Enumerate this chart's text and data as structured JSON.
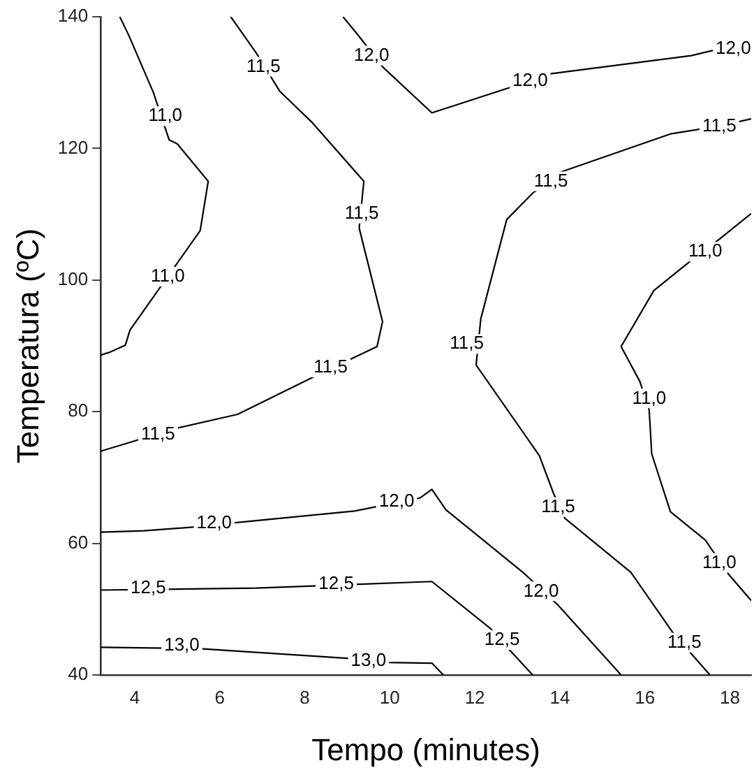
{
  "chart_data": {
    "type": "line",
    "xlabel": "Tempo (minutes)",
    "ylabel": "Temperatura (ºC)",
    "xlim": [
      3.2,
      18.5
    ],
    "ylim": [
      40,
      140
    ],
    "xticks": [
      4,
      6,
      8,
      10,
      12,
      14,
      16,
      18
    ],
    "yticks": [
      40,
      60,
      80,
      100,
      120,
      140
    ],
    "grid": false,
    "legend": false,
    "marker": "none",
    "line_style": "solid",
    "series": [
      {
        "color": "#000000",
        "x": [
          3.65,
          3.86,
          4.44,
          4.81,
          5.0,
          5.73,
          5.54,
          3.89,
          3.78,
          3.4,
          3.2
        ],
        "values": [
          140,
          137.2,
          128.5,
          121.3,
          120.7,
          115,
          107.5,
          92.4,
          90.1,
          89.0,
          88.6
        ]
      },
      {
        "color": "#000000",
        "x": [
          6.26,
          6.86,
          7.41,
          8.18,
          9.39,
          9.28,
          9.83,
          9.7,
          8.18,
          6.42,
          4.99,
          3.2
        ],
        "values": [
          140,
          134.5,
          128.7,
          123.9,
          115,
          107.9,
          93.7,
          89.9,
          85.2,
          79.6,
          77.5,
          74.0
        ]
      },
      {
        "color": "#000000",
        "x": [
          8.9,
          9.28,
          9.83,
          10.99,
          12.8,
          13.74,
          17.09,
          18.5
        ],
        "values": [
          140,
          137,
          132.4,
          125.4,
          129.2,
          131.3,
          134.1,
          136.3
        ]
      },
      {
        "color": "#000000",
        "x": [
          18.5,
          17.75,
          16.6,
          14.02,
          13.36,
          12.75,
          12.14,
          12.03,
          13.52,
          13.85,
          14.12,
          15.67,
          16.66,
          17.53
        ],
        "values": [
          124.5,
          123.4,
          122.2,
          116.4,
          113.2,
          109.2,
          94.1,
          87.1,
          73.3,
          67.6,
          63.8,
          55.6,
          46.4,
          40
        ]
      },
      {
        "color": "#000000",
        "x": [
          18.5,
          17.75,
          17.09,
          16.21,
          15.44,
          15.88,
          16.1,
          16.16,
          16.6,
          17.42,
          17.98,
          18.5
        ],
        "values": [
          110.1,
          106.2,
          103,
          98.4,
          89.9,
          84.6,
          80.3,
          73.6,
          64.8,
          60.5,
          55.2,
          51.3
        ]
      },
      {
        "color": "#000000",
        "x": [
          3.2,
          4.22,
          5.43,
          6.31,
          9.17,
          10.71,
          10.99,
          11.32,
          13.13,
          13.96,
          15.44
        ],
        "values": [
          61.7,
          61.9,
          62.5,
          63.1,
          64.9,
          66.9,
          68.2,
          65.1,
          55.6,
          50.6,
          40
        ]
      },
      {
        "color": "#000000",
        "x": [
          3.2,
          6.86,
          10.99,
          12.36,
          12.86,
          13.36
        ],
        "values": [
          52.9,
          53.2,
          54.2,
          47.1,
          43.5,
          40
        ]
      },
      {
        "color": "#000000",
        "x": [
          3.2,
          5.54,
          9.06,
          9.94,
          10.99,
          11.26
        ],
        "values": [
          44.2,
          44.0,
          42.5,
          41.9,
          41.8,
          40
        ]
      }
    ],
    "annotations": [
      {
        "text": "11,0",
        "x": 4.72,
        "y": 124.9
      },
      {
        "text": "11,0",
        "x": 4.78,
        "y": 100.5
      },
      {
        "text": "11,5",
        "x": 7.03,
        "y": 132.4
      },
      {
        "text": "11,5",
        "x": 9.34,
        "y": 110.1
      },
      {
        "text": "11,5",
        "x": 8.61,
        "y": 86.7
      },
      {
        "text": "11,5",
        "x": 4.55,
        "y": 76.5
      },
      {
        "text": "12,0",
        "x": 9.57,
        "y": 134.1
      },
      {
        "text": "12,0",
        "x": 13.3,
        "y": 130.2
      },
      {
        "text": "12,0",
        "x": 18.08,
        "y": 135.1
      },
      {
        "text": "11,5",
        "x": 17.75,
        "y": 123.4
      },
      {
        "text": "11,5",
        "x": 13.79,
        "y": 115.0
      },
      {
        "text": "11,5",
        "x": 11.81,
        "y": 90.3
      },
      {
        "text": "11,5",
        "x": 13.96,
        "y": 65.5
      },
      {
        "text": "11,5",
        "x": 16.93,
        "y": 44.9
      },
      {
        "text": "11,0",
        "x": 17.42,
        "y": 104.3
      },
      {
        "text": "11,0",
        "x": 16.1,
        "y": 82.0
      },
      {
        "text": "11,0",
        "x": 17.75,
        "y": 57.0
      },
      {
        "text": "12,0",
        "x": 5.87,
        "y": 63.1
      },
      {
        "text": "12,0",
        "x": 10.16,
        "y": 66.3
      },
      {
        "text": "12,0",
        "x": 13.56,
        "y": 52.7
      },
      {
        "text": "12,5",
        "x": 4.32,
        "y": 53.2
      },
      {
        "text": "12,5",
        "x": 8.74,
        "y": 53.8
      },
      {
        "text": "12,5",
        "x": 12.64,
        "y": 45.3
      },
      {
        "text": "13,0",
        "x": 5.11,
        "y": 44.5
      },
      {
        "text": "13,0",
        "x": 9.5,
        "y": 42.1
      }
    ]
  }
}
